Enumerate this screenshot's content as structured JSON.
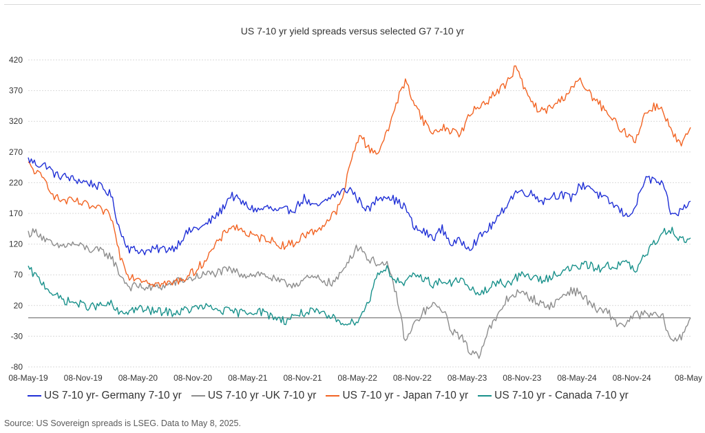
{
  "chart_data": {
    "type": "line",
    "title": "US 7-10 yr yield spreads versus selected G7 7-10 yr",
    "xlabel": "",
    "ylabel": "",
    "ylim": [
      -80,
      430
    ],
    "y_ticks": [
      420,
      370,
      320,
      270,
      220,
      170,
      120,
      70,
      20,
      -30,
      -80
    ],
    "x_tick_labels": [
      "08-May-19",
      "08-Nov-19",
      "08-May-20",
      "08-Nov-20",
      "08-May-21",
      "08-Nov-21",
      "08-May-22",
      "08-Nov-22",
      "08-May-23",
      "08-Nov-23",
      "08-May-24",
      "08-Nov-24",
      "08-May"
    ],
    "grid": "horizontal dotted",
    "zero_line": true,
    "legend_position": "bottom",
    "x": [
      "2019-05",
      "2019-06",
      "2019-07",
      "2019-08",
      "2019-09",
      "2019-10",
      "2019-11",
      "2019-12",
      "2020-01",
      "2020-02",
      "2020-03",
      "2020-04",
      "2020-05",
      "2020-06",
      "2020-07",
      "2020-08",
      "2020-09",
      "2020-10",
      "2020-11",
      "2020-12",
      "2021-01",
      "2021-02",
      "2021-03",
      "2021-04",
      "2021-05",
      "2021-06",
      "2021-07",
      "2021-08",
      "2021-09",
      "2021-10",
      "2021-11",
      "2021-12",
      "2022-01",
      "2022-02",
      "2022-03",
      "2022-04",
      "2022-05",
      "2022-06",
      "2022-07",
      "2022-08",
      "2022-09",
      "2022-10",
      "2022-11",
      "2022-12",
      "2023-01",
      "2023-02",
      "2023-03",
      "2023-04",
      "2023-05",
      "2023-06",
      "2023-07",
      "2023-08",
      "2023-09",
      "2023-10",
      "2023-11",
      "2023-12",
      "2024-01",
      "2024-02",
      "2024-03",
      "2024-04",
      "2024-05",
      "2024-06",
      "2024-07",
      "2024-08",
      "2024-09",
      "2024-10",
      "2024-11",
      "2024-12",
      "2025-01",
      "2025-02",
      "2025-03",
      "2025-04",
      "2025-05"
    ],
    "series": [
      {
        "name": "US 7-10 yr- Germany 7-10 yr",
        "color": "#1f2fd6",
        "values": [
          258,
          250,
          248,
          232,
          230,
          225,
          222,
          218,
          212,
          200,
          140,
          112,
          110,
          108,
          112,
          112,
          115,
          135,
          145,
          148,
          160,
          175,
          200,
          190,
          180,
          175,
          180,
          173,
          175,
          178,
          195,
          180,
          185,
          198,
          205,
          210,
          190,
          175,
          195,
          200,
          190,
          180,
          145,
          140,
          130,
          145,
          120,
          125,
          115,
          130,
          145,
          160,
          185,
          205,
          205,
          200,
          190,
          200,
          200,
          195,
          215,
          215,
          200,
          190,
          180,
          165,
          180,
          225,
          225,
          215,
          165,
          175,
          190
        ]
      },
      {
        "name": "US 7-10 yr -UK 7-10 yr",
        "color": "#8c8c8c",
        "values": [
          138,
          140,
          125,
          115,
          118,
          120,
          115,
          110,
          108,
          100,
          70,
          50,
          52,
          48,
          50,
          52,
          58,
          62,
          65,
          70,
          72,
          75,
          78,
          72,
          70,
          72,
          68,
          60,
          55,
          55,
          62,
          65,
          62,
          55,
          70,
          100,
          118,
          95,
          90,
          85,
          40,
          -40,
          -10,
          10,
          20,
          15,
          -20,
          -30,
          -55,
          -60,
          -20,
          0,
          30,
          40,
          38,
          30,
          20,
          20,
          35,
          45,
          40,
          25,
          10,
          10,
          -10,
          -10,
          5,
          5,
          5,
          0,
          -40,
          -30,
          0
        ]
      },
      {
        "name": "US 7-10 yr - Japan 7-10 yr",
        "color": "#f26322",
        "values": [
          250,
          235,
          220,
          195,
          190,
          190,
          185,
          180,
          175,
          165,
          100,
          68,
          65,
          60,
          55,
          55,
          58,
          65,
          75,
          90,
          110,
          130,
          150,
          145,
          135,
          130,
          130,
          120,
          118,
          122,
          135,
          140,
          150,
          165,
          185,
          250,
          300,
          275,
          270,
          300,
          350,
          385,
          350,
          320,
          300,
          310,
          305,
          300,
          330,
          345,
          355,
          370,
          380,
          410,
          370,
          345,
          335,
          345,
          355,
          375,
          385,
          365,
          350,
          330,
          315,
          300,
          290,
          330,
          345,
          340,
          300,
          280,
          310
        ]
      },
      {
        "name": "US 7-10 yr - Canada 7-10 yr",
        "color": "#17908a",
        "values": [
          80,
          65,
          50,
          35,
          28,
          25,
          20,
          18,
          20,
          22,
          5,
          12,
          15,
          12,
          10,
          10,
          8,
          12,
          15,
          18,
          15,
          12,
          10,
          8,
          10,
          12,
          5,
          0,
          -5,
          5,
          8,
          10,
          5,
          0,
          -5,
          -10,
          0,
          25,
          75,
          80,
          60,
          55,
          70,
          65,
          55,
          60,
          55,
          65,
          45,
          40,
          45,
          60,
          55,
          65,
          70,
          65,
          60,
          70,
          75,
          80,
          85,
          85,
          80,
          85,
          85,
          90,
          75,
          100,
          120,
          140,
          145,
          125,
          130
        ]
      }
    ]
  },
  "source_text": "Source: US Sovereign spreads is LSEG. Data to May 8, 2025."
}
